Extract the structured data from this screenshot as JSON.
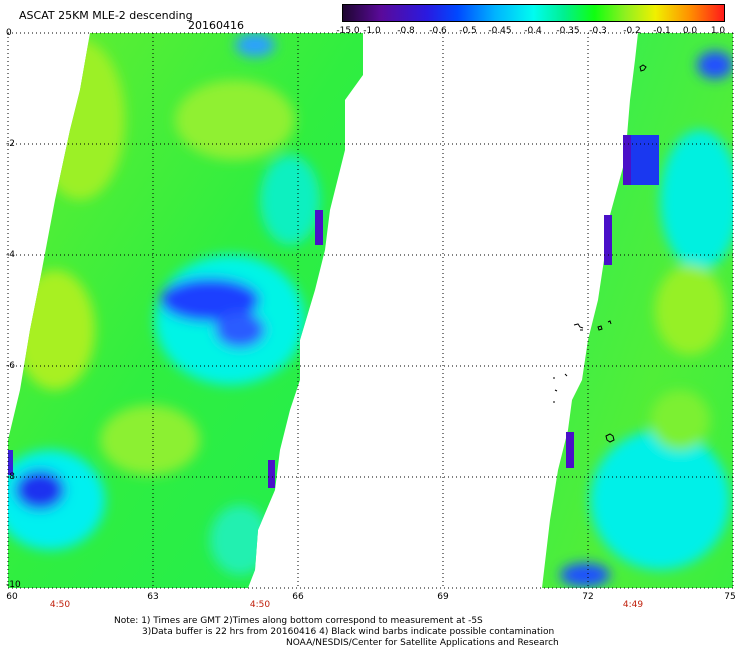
{
  "title": "ASCAT 25KM MLE-2 descending",
  "date": "20160416",
  "colorbar": {
    "labels": [
      "-15.0",
      "-1.0",
      "-0.8",
      "-0.6",
      "-0.5",
      "-0.45",
      "-0.4",
      "-0.35",
      "-0.3",
      "-0.2",
      "-0.1",
      "0.0",
      "1.0"
    ],
    "colors": [
      "#1e0630",
      "#5a0a9a",
      "#2a1ae0",
      "#0048ff",
      "#00b4ff",
      "#00fcf0",
      "#00f090",
      "#10ff10",
      "#8ef020",
      "#f0f000",
      "#ff9000",
      "#ff1a1a"
    ]
  },
  "axes": {
    "y_ticks": [
      "0",
      "-2",
      "-4",
      "-6",
      "-8",
      "-10"
    ],
    "x_ticks": [
      "60",
      "63",
      "66",
      "69",
      "72",
      "75"
    ],
    "times": [
      "4:50",
      "4:50",
      "4:49"
    ]
  },
  "notes": [
    "Note: 1) Times are GMT 2)Times along bottom correspond to measurement at -5S",
    "3)Data buffer is 22 hrs from 20160416 4) Black wind barbs indicate possible contamination",
    "NOAA/NESDIS/Center for Satellite Applications and Research"
  ],
  "chart_data": {
    "type": "heatmap",
    "title": "ASCAT 25KM MLE-2 descending",
    "date": "20160416",
    "x_range": [
      60,
      75
    ],
    "y_range": [
      -10,
      0
    ],
    "grid": true,
    "colorbar_labels": [
      "-15.0",
      "-1.0",
      "-0.8",
      "-0.6",
      "-0.5",
      "-0.45",
      "-0.4",
      "-0.35",
      "-0.3",
      "-0.2",
      "-0.1",
      "0.0",
      "1.0"
    ],
    "swaths": [
      {
        "name": "west",
        "time": "4:50"
      },
      {
        "name": "east",
        "time": "4:49"
      }
    ]
  }
}
